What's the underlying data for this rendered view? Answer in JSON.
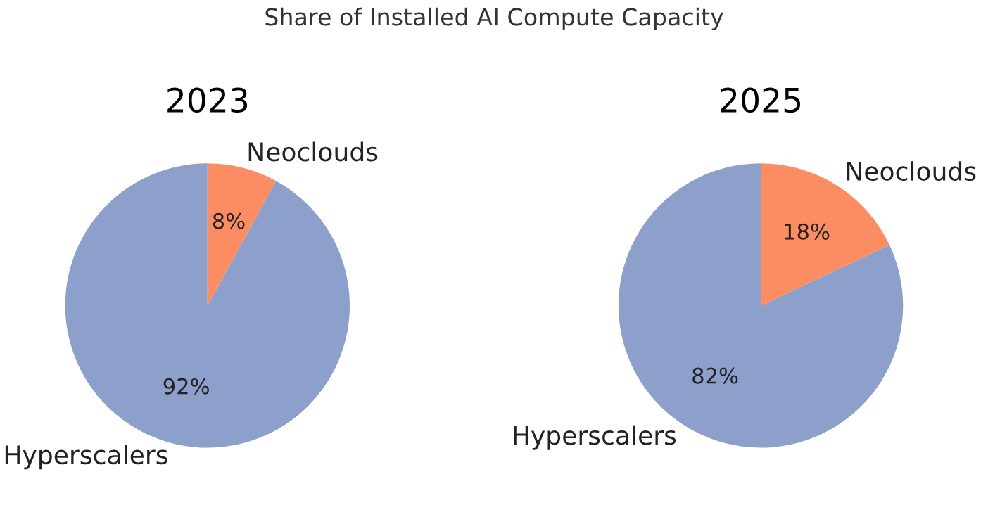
{
  "chart_data": [
    {
      "type": "pie",
      "title": "Share of Installed AI Compute Capacity",
      "subtitle": "2023",
      "categories": [
        "Hyperscalers",
        "Neoclouds"
      ],
      "values": [
        92,
        8
      ],
      "colors": [
        "#8da0cb",
        "#fc8d62"
      ],
      "value_labels": [
        "92%",
        "8%"
      ]
    },
    {
      "type": "pie",
      "subtitle": "2025",
      "categories": [
        "Hyperscalers",
        "Neoclouds"
      ],
      "values": [
        82,
        18
      ],
      "colors": [
        "#8da0cb",
        "#fc8d62"
      ],
      "value_labels": [
        "82%",
        "18%"
      ]
    }
  ]
}
